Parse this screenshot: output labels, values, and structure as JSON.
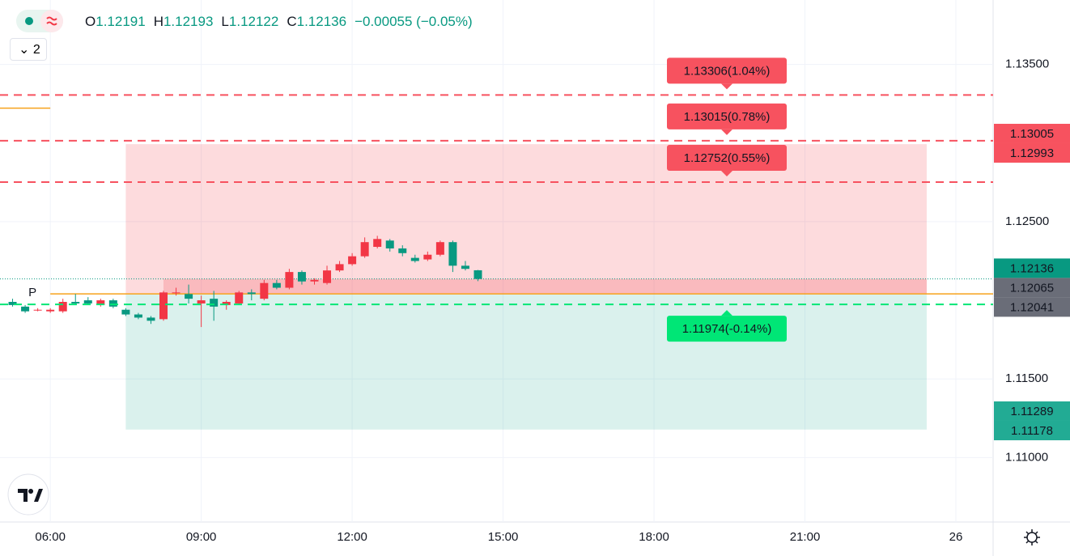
{
  "header": {
    "ohlc": [
      {
        "label": "O",
        "value": "1.12191"
      },
      {
        "label": "H",
        "value": "1.12193"
      },
      {
        "label": "L",
        "value": "1.12122"
      },
      {
        "label": "C",
        "value": "1.12136"
      }
    ],
    "change": "−0.00055 (−0.05%)",
    "indicator_count": "2"
  },
  "chart_data": {
    "type": "candlestick",
    "x": [
      5.25,
      5.5,
      5.75,
      6,
      6.25,
      6.5,
      6.75,
      7,
      7.25,
      7.5,
      7.75,
      8,
      8.25,
      8.5,
      8.75,
      9,
      9.25,
      9.5,
      9.75,
      10,
      10.25,
      10.5,
      10.75,
      11,
      11.25,
      11.5,
      11.75,
      12,
      12.25,
      12.5,
      12.75,
      13,
      13.25,
      13.5,
      13.75,
      14,
      14.25,
      14.5
    ],
    "open": [
      1.1199,
      1.1196,
      1.1194,
      1.1193,
      1.1193,
      1.1199,
      1.12,
      1.1197,
      1.12,
      1.1194,
      1.1191,
      1.1189,
      1.1188,
      1.1205,
      1.1204,
      1.1198,
      1.1201,
      1.1197,
      1.1198,
      1.1205,
      1.1201,
      1.1211,
      1.1208,
      1.1218,
      1.1212,
      1.1211,
      1.1219,
      1.1223,
      1.1228,
      1.1234,
      1.1238,
      1.1233,
      1.1227,
      1.1226,
      1.1229,
      1.1237,
      1.1222,
      1.12191
    ],
    "high": [
      1.1201,
      1.1197,
      1.1195,
      1.1195,
      1.1201,
      1.1204,
      1.1202,
      1.1201,
      1.1201,
      1.1195,
      1.1192,
      1.119,
      1.1206,
      1.1208,
      1.121,
      1.1203,
      1.1206,
      1.12,
      1.1206,
      1.1207,
      1.1213,
      1.1213,
      1.122,
      1.1219,
      1.1214,
      1.1222,
      1.1225,
      1.123,
      1.124,
      1.1241,
      1.1239,
      1.1235,
      1.1229,
      1.1231,
      1.1238,
      1.1238,
      1.1225,
      1.12193
    ],
    "low": [
      1.1196,
      1.1192,
      1.1193,
      1.1192,
      1.1192,
      1.1197,
      1.1197,
      1.1196,
      1.1195,
      1.119,
      1.1188,
      1.1185,
      1.1187,
      1.1203,
      1.1198,
      1.1183,
      1.1187,
      1.1194,
      1.1197,
      1.12,
      1.12,
      1.1207,
      1.1207,
      1.121,
      1.121,
      1.121,
      1.1218,
      1.1222,
      1.1227,
      1.1233,
      1.1231,
      1.1228,
      1.1224,
      1.1225,
      1.1228,
      1.1218,
      1.1219,
      1.12122
    ],
    "close": [
      1.1197,
      1.1193,
      1.1194,
      1.1194,
      1.1199,
      1.1198,
      1.1198,
      1.12,
      1.1196,
      1.1191,
      1.1189,
      1.1187,
      1.1205,
      1.1205,
      1.1201,
      1.12,
      1.1196,
      1.1199,
      1.1205,
      1.1204,
      1.1211,
      1.1208,
      1.1218,
      1.1212,
      1.1213,
      1.1219,
      1.1223,
      1.1228,
      1.1237,
      1.1239,
      1.1233,
      1.123,
      1.1225,
      1.1229,
      1.1237,
      1.1222,
      1.122,
      1.12136
    ],
    "up_color": "#f23645",
    "down_color": "#089981",
    "xlim": [
      5,
      24.74
    ],
    "xticks": [
      {
        "value": 6,
        "label": "06:00"
      },
      {
        "value": 9,
        "label": "09:00"
      },
      {
        "value": 12,
        "label": "12:00"
      },
      {
        "value": 15,
        "label": "15:00"
      },
      {
        "value": 18,
        "label": "18:00"
      },
      {
        "value": 21,
        "label": "21:00"
      },
      {
        "value": 24,
        "label": "26"
      }
    ],
    "ylim": [
      1.1059,
      1.1391
    ],
    "yticks": [
      {
        "value": 1.135,
        "label": "1.13500"
      },
      {
        "value": 1.125,
        "label": "1.12500"
      },
      {
        "value": 1.115,
        "label": "1.11500"
      },
      {
        "value": 1.11,
        "label": "1.11000"
      }
    ],
    "grid": true,
    "levels": [
      {
        "value": 1.13306,
        "label": "1.13306(1.04%)",
        "color": "#f7525f"
      },
      {
        "value": 1.13015,
        "label": "1.13015(0.78%)",
        "color": "#f7525f"
      },
      {
        "value": 1.12752,
        "label": "1.12752(0.55%)",
        "color": "#f7525f"
      },
      {
        "value": 1.11974,
        "label": "1.11974(-0.14%)",
        "color": "#00e676"
      }
    ],
    "zone": {
      "start": 7.5,
      "end": 23.42,
      "top": 1.12993,
      "entry": 1.12041,
      "bottom": 1.11178,
      "entry_start": 8.25
    },
    "pivot": {
      "label": "P",
      "value": 1.12041,
      "start": 6,
      "color": "#f7a21b"
    },
    "prev_pivot": {
      "value": 1.13222,
      "end": 6
    },
    "price_labels": [
      {
        "value": 1.13005,
        "color": "#f7525f"
      },
      {
        "value": 1.12993,
        "color": "#f7525f"
      },
      {
        "value": 1.12136,
        "color": "#089981"
      },
      {
        "value": 1.12065,
        "color": "#6a6d78"
      },
      {
        "value": 1.12041,
        "color": "#6a6d78"
      },
      {
        "value": 1.11289,
        "color": "#22ab94"
      },
      {
        "value": 1.11178,
        "color": "#22ab94"
      }
    ]
  }
}
